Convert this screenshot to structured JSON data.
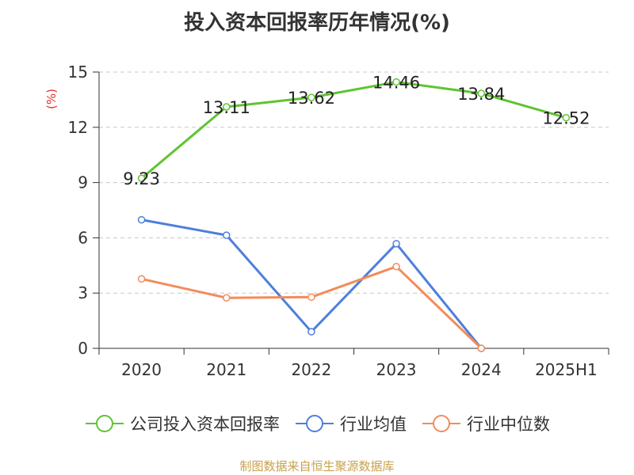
{
  "chart_data": {
    "type": "line",
    "title": "投入资本回报率历年情况(%)",
    "ylabel": "(%)",
    "categories": [
      "2020",
      "2021",
      "2022",
      "2023",
      "2024",
      "2025H1"
    ],
    "ylim": [
      0,
      15
    ],
    "yticks": [
      0,
      3,
      6,
      9,
      12,
      15
    ],
    "grid": true,
    "legend_position": "bottom",
    "series": [
      {
        "name": "公司投入资本回报率",
        "color": "#5fc431",
        "values": [
          9.23,
          13.11,
          13.62,
          14.46,
          13.84,
          12.52
        ],
        "labels": [
          "9.23",
          "13.11",
          "13.62",
          "14.46",
          "13.84",
          "12.52"
        ]
      },
      {
        "name": "行业均值",
        "color": "#4e7fdc",
        "values": [
          6.98,
          6.14,
          0.9,
          5.68,
          0.0,
          null
        ]
      },
      {
        "name": "行业中位数",
        "color": "#f38b5b",
        "values": [
          3.77,
          2.74,
          2.78,
          4.44,
          0.0,
          null
        ]
      }
    ]
  },
  "source_note": "制图数据来自恒生聚源数据库"
}
